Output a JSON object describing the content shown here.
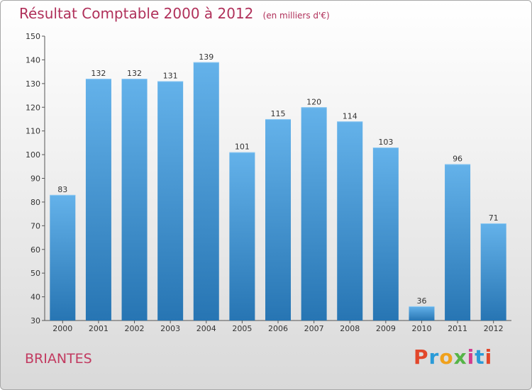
{
  "header": {
    "title": "Résultat Comptable 2000 à 2012",
    "unit": "(en milliers d'€)"
  },
  "commune": "BRIANTES",
  "logo": {
    "text": "Proxiti",
    "colors": [
      "#e2472b",
      "#2a9bd8",
      "#f0a11c",
      "#56b447",
      "#d23c8c",
      "#2a9bd8",
      "#e2472b"
    ]
  },
  "colors": {
    "bar_light": "#64b2ea",
    "bar_dark": "#2775b3",
    "axis": "#555555",
    "grid": "#c8c8c8"
  },
  "chart_data": {
    "type": "bar",
    "title": "Résultat Comptable 2000 à 2012",
    "xlabel": "",
    "ylabel": "(en milliers d'€)",
    "categories": [
      "2000",
      "2001",
      "2002",
      "2003",
      "2004",
      "2005",
      "2006",
      "2007",
      "2008",
      "2009",
      "2010",
      "2011",
      "2012"
    ],
    "values": [
      83,
      132,
      132,
      131,
      139,
      101,
      115,
      120,
      114,
      103,
      36,
      96,
      71
    ],
    "ylim": [
      30,
      150
    ],
    "yticks": [
      30,
      40,
      50,
      60,
      70,
      80,
      90,
      100,
      110,
      120,
      130,
      140,
      150
    ],
    "grid": false
  }
}
